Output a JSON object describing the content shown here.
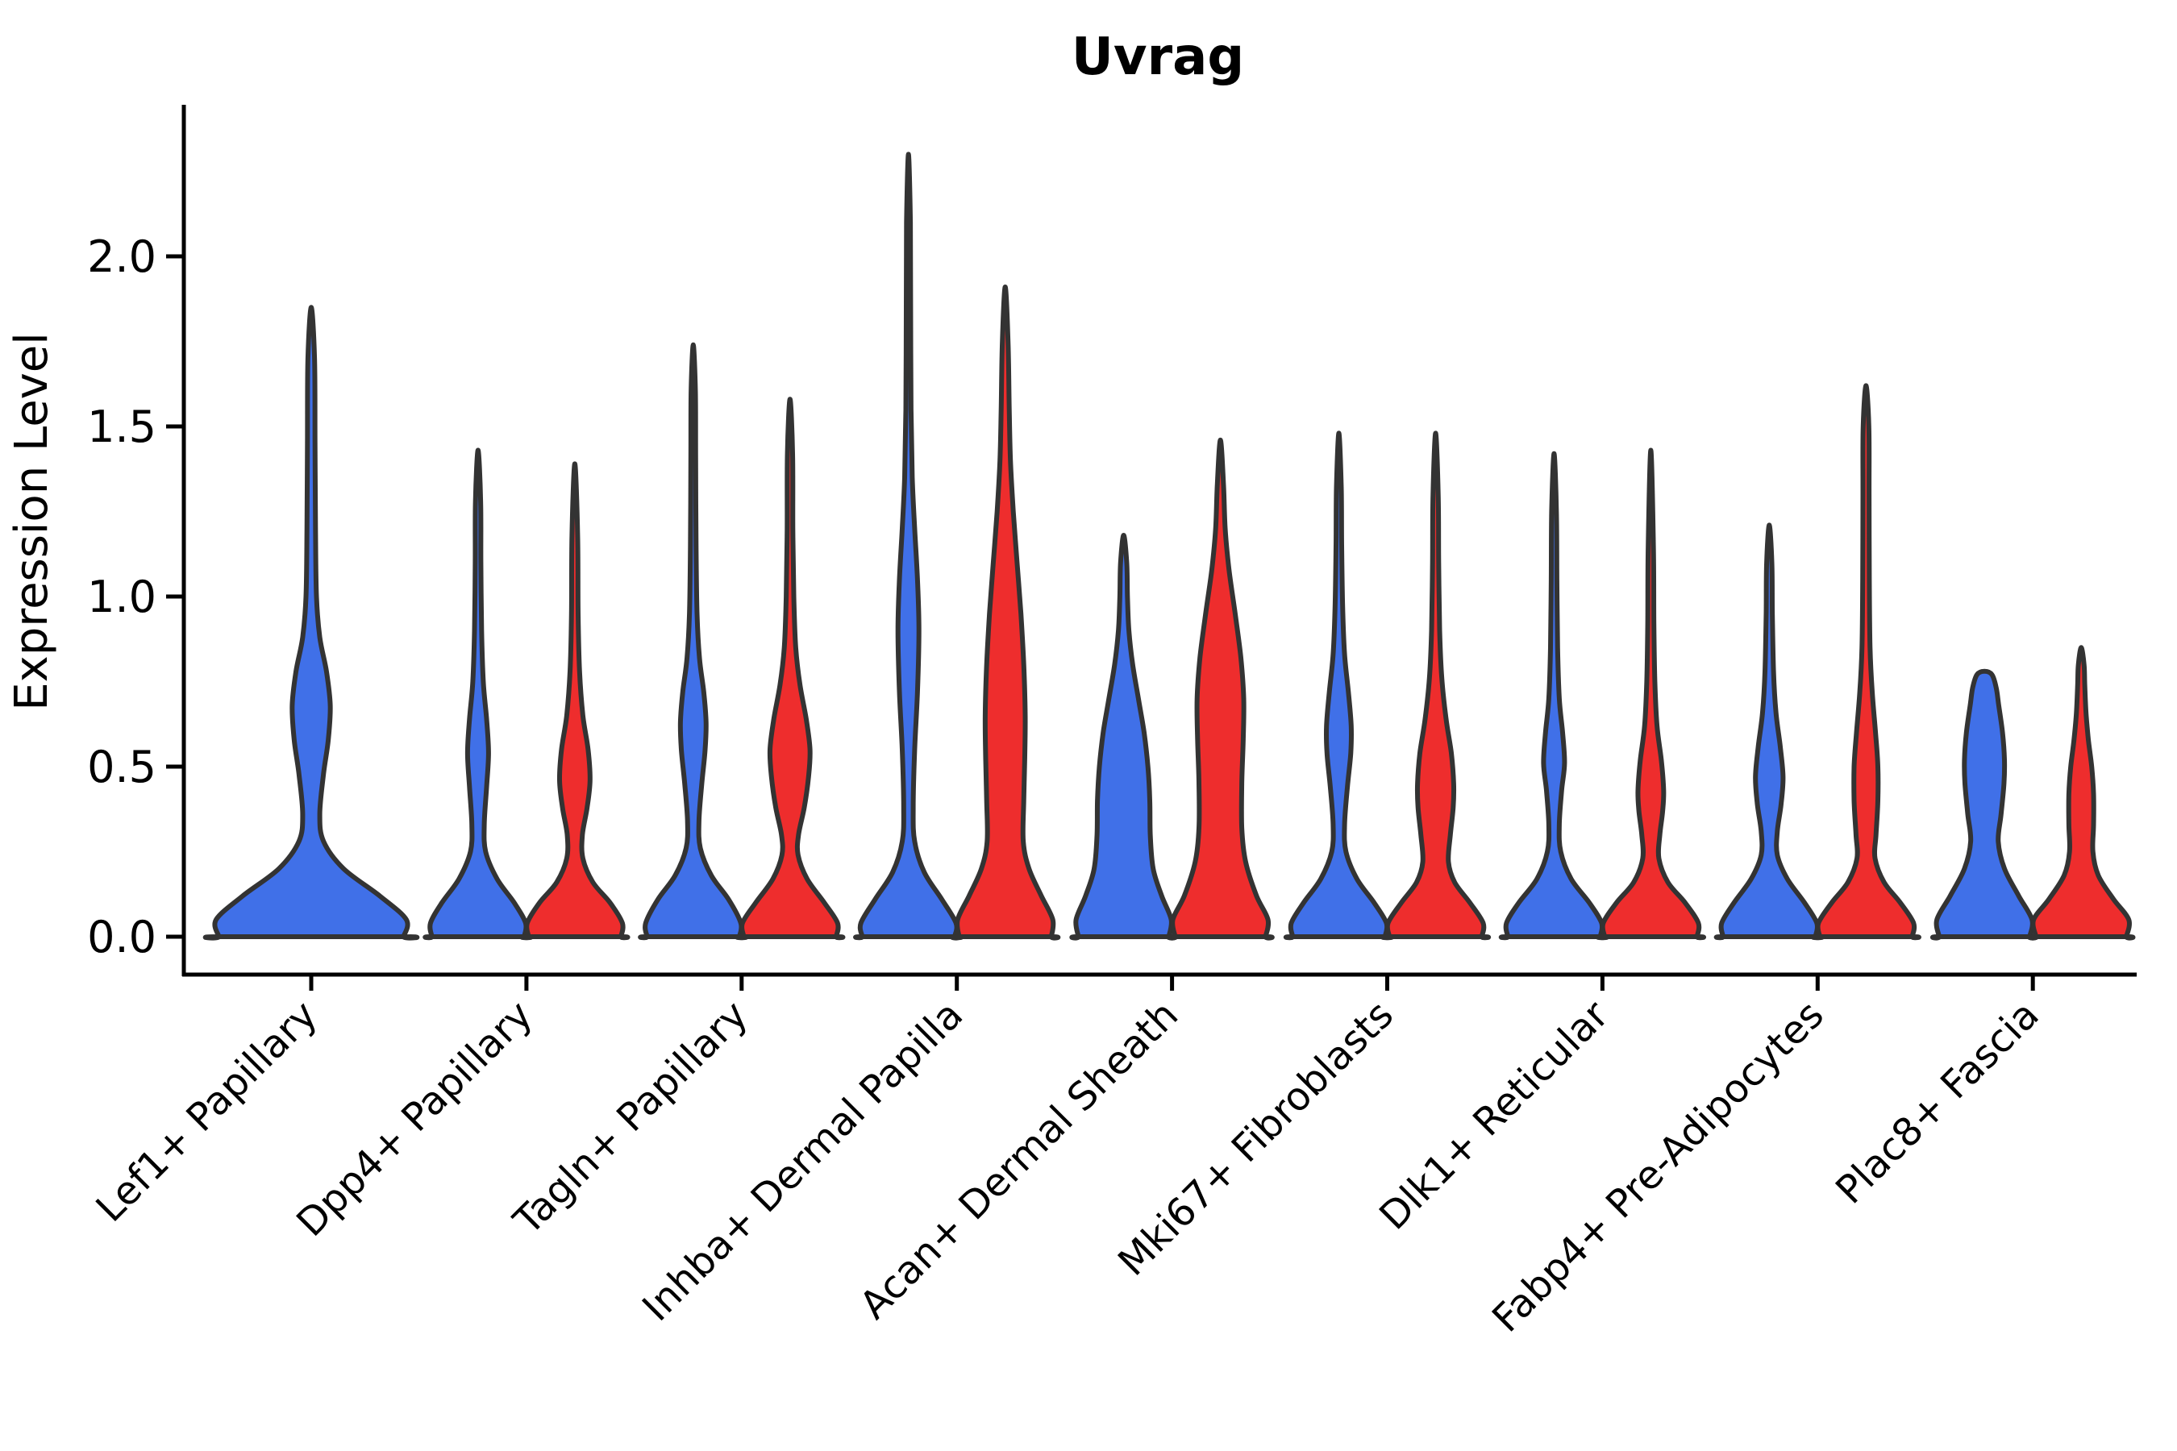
{
  "title": "Uvrag",
  "y_axis_label": "Expression Level",
  "y_tick_labels": [
    "0.0",
    "0.5",
    "1.0",
    "1.5",
    "2.0"
  ],
  "colors": {
    "blue_fill": "#4070E8",
    "red_fill": "#EE2D2D",
    "violin_outline": "#333333",
    "axis": "#000000",
    "background": "#FFFFFF"
  },
  "chart_data": {
    "type": "violin",
    "title": "Uvrag",
    "ylabel": "Expression Level",
    "xlabel": "",
    "ylim": [
      0,
      2.4
    ],
    "yticks": [
      0.0,
      0.5,
      1.0,
      1.5,
      2.0
    ],
    "grid": false,
    "legend_position": "none",
    "groups": [
      {
        "name": "blue",
        "color": "#4070E8"
      },
      {
        "name": "red",
        "color": "#EE2D2D"
      }
    ],
    "categories": [
      "Lef1+ Papillary",
      "Dpp4+ Papillary",
      "Tagln+ Papillary",
      "Inhba+ Dermal Papilla",
      "Acan+ Dermal Sheath",
      "Mki67+ Fibroblasts",
      "Dlk1+ Reticular",
      "Fabp4+ Pre-Adipocytes",
      "Plac8+ Fascia"
    ],
    "profile_format": "[expression_level, half_width_fraction] pairs from base (0) to distribution tip",
    "violins": [
      {
        "category": "Lef1+ Papillary",
        "blue": {
          "max": 1.85,
          "profile": [
            [
              0,
              0.97
            ],
            [
              0.05,
              1.0
            ],
            [
              0.12,
              0.72
            ],
            [
              0.2,
              0.34
            ],
            [
              0.28,
              0.13
            ],
            [
              0.36,
              0.09
            ],
            [
              0.48,
              0.13
            ],
            [
              0.58,
              0.18
            ],
            [
              0.68,
              0.2
            ],
            [
              0.78,
              0.16
            ],
            [
              0.88,
              0.09
            ],
            [
              1.0,
              0.055
            ],
            [
              1.2,
              0.045
            ],
            [
              1.45,
              0.04
            ],
            [
              1.7,
              0.035
            ],
            [
              1.85,
              0
            ]
          ]
        },
        "red": null
      },
      {
        "category": "Dpp4+ Papillary",
        "blue": {
          "max": 1.43,
          "profile": [
            [
              0,
              0.97
            ],
            [
              0.04,
              1.0
            ],
            [
              0.1,
              0.76
            ],
            [
              0.17,
              0.4
            ],
            [
              0.25,
              0.16
            ],
            [
              0.33,
              0.13
            ],
            [
              0.44,
              0.18
            ],
            [
              0.54,
              0.22
            ],
            [
              0.64,
              0.18
            ],
            [
              0.75,
              0.11
            ],
            [
              0.9,
              0.075
            ],
            [
              1.1,
              0.06
            ],
            [
              1.28,
              0.055
            ],
            [
              1.43,
              0
            ]
          ]
        },
        "red": {
          "max": 1.39,
          "profile": [
            [
              0,
              0.97
            ],
            [
              0.04,
              1.0
            ],
            [
              0.1,
              0.74
            ],
            [
              0.16,
              0.38
            ],
            [
              0.23,
              0.17
            ],
            [
              0.3,
              0.16
            ],
            [
              0.38,
              0.26
            ],
            [
              0.46,
              0.32
            ],
            [
              0.55,
              0.28
            ],
            [
              0.65,
              0.17
            ],
            [
              0.78,
              0.1
            ],
            [
              0.95,
              0.07
            ],
            [
              1.18,
              0.06
            ],
            [
              1.39,
              0
            ]
          ]
        }
      },
      {
        "category": "Tagln+ Papillary",
        "blue": {
          "max": 1.74,
          "profile": [
            [
              0,
              0.97
            ],
            [
              0.04,
              1.0
            ],
            [
              0.11,
              0.74
            ],
            [
              0.18,
              0.38
            ],
            [
              0.26,
              0.15
            ],
            [
              0.34,
              0.12
            ],
            [
              0.45,
              0.18
            ],
            [
              0.55,
              0.25
            ],
            [
              0.63,
              0.27
            ],
            [
              0.72,
              0.22
            ],
            [
              0.82,
              0.13
            ],
            [
              0.95,
              0.08
            ],
            [
              1.15,
              0.06
            ],
            [
              1.4,
              0.05
            ],
            [
              1.6,
              0.045
            ],
            [
              1.74,
              0
            ]
          ]
        },
        "red": {
          "max": 1.58,
          "profile": [
            [
              0,
              0.97
            ],
            [
              0.04,
              1.0
            ],
            [
              0.1,
              0.72
            ],
            [
              0.17,
              0.36
            ],
            [
              0.24,
              0.17
            ],
            [
              0.3,
              0.18
            ],
            [
              0.38,
              0.3
            ],
            [
              0.47,
              0.39
            ],
            [
              0.55,
              0.42
            ],
            [
              0.64,
              0.34
            ],
            [
              0.74,
              0.21
            ],
            [
              0.85,
              0.12
            ],
            [
              1.0,
              0.08
            ],
            [
              1.2,
              0.06
            ],
            [
              1.42,
              0.055
            ],
            [
              1.58,
              0
            ]
          ]
        }
      },
      {
        "category": "Inhba+ Dermal Papilla",
        "blue": {
          "max": 2.3,
          "profile": [
            [
              0,
              0.97
            ],
            [
              0.04,
              1.0
            ],
            [
              0.11,
              0.7
            ],
            [
              0.19,
              0.33
            ],
            [
              0.28,
              0.13
            ],
            [
              0.38,
              0.1
            ],
            [
              0.55,
              0.13
            ],
            [
              0.72,
              0.19
            ],
            [
              0.9,
              0.22
            ],
            [
              1.05,
              0.19
            ],
            [
              1.2,
              0.13
            ],
            [
              1.35,
              0.08
            ],
            [
              1.55,
              0.055
            ],
            [
              1.85,
              0.045
            ],
            [
              2.1,
              0.04
            ],
            [
              2.3,
              0
            ]
          ]
        },
        "red": {
          "max": 1.91,
          "profile": [
            [
              0,
              0.97
            ],
            [
              0.05,
              1.0
            ],
            [
              0.12,
              0.76
            ],
            [
              0.2,
              0.5
            ],
            [
              0.28,
              0.38
            ],
            [
              0.4,
              0.39
            ],
            [
              0.52,
              0.41
            ],
            [
              0.65,
              0.42
            ],
            [
              0.8,
              0.39
            ],
            [
              0.95,
              0.33
            ],
            [
              1.1,
              0.25
            ],
            [
              1.25,
              0.17
            ],
            [
              1.4,
              0.11
            ],
            [
              1.55,
              0.085
            ],
            [
              1.75,
              0.06
            ],
            [
              1.91,
              0
            ]
          ]
        }
      },
      {
        "category": "Acan+ Dermal Sheath",
        "blue": {
          "max": 1.18,
          "profile": [
            [
              0,
              0.95
            ],
            [
              0.05,
              1.0
            ],
            [
              0.12,
              0.8
            ],
            [
              0.2,
              0.62
            ],
            [
              0.3,
              0.56
            ],
            [
              0.4,
              0.55
            ],
            [
              0.5,
              0.51
            ],
            [
              0.6,
              0.43
            ],
            [
              0.7,
              0.31
            ],
            [
              0.8,
              0.19
            ],
            [
              0.9,
              0.11
            ],
            [
              1.0,
              0.08
            ],
            [
              1.1,
              0.065
            ],
            [
              1.18,
              0
            ]
          ]
        },
        "red": {
          "max": 1.46,
          "profile": [
            [
              0,
              0.95
            ],
            [
              0.05,
              1.0
            ],
            [
              0.12,
              0.76
            ],
            [
              0.22,
              0.53
            ],
            [
              0.32,
              0.45
            ],
            [
              0.45,
              0.45
            ],
            [
              0.58,
              0.48
            ],
            [
              0.7,
              0.49
            ],
            [
              0.82,
              0.43
            ],
            [
              0.95,
              0.31
            ],
            [
              1.08,
              0.18
            ],
            [
              1.2,
              0.1
            ],
            [
              1.33,
              0.065
            ],
            [
              1.46,
              0
            ]
          ]
        }
      },
      {
        "category": "Mki67+ Fibroblasts",
        "blue": {
          "max": 1.48,
          "profile": [
            [
              0,
              0.97
            ],
            [
              0.04,
              1.0
            ],
            [
              0.1,
              0.74
            ],
            [
              0.17,
              0.38
            ],
            [
              0.25,
              0.15
            ],
            [
              0.33,
              0.12
            ],
            [
              0.44,
              0.18
            ],
            [
              0.54,
              0.25
            ],
            [
              0.62,
              0.26
            ],
            [
              0.72,
              0.2
            ],
            [
              0.83,
              0.12
            ],
            [
              0.97,
              0.08
            ],
            [
              1.15,
              0.06
            ],
            [
              1.32,
              0.05
            ],
            [
              1.48,
              0
            ]
          ]
        },
        "red": {
          "max": 1.48,
          "profile": [
            [
              0,
              0.97
            ],
            [
              0.04,
              1.0
            ],
            [
              0.1,
              0.72
            ],
            [
              0.16,
              0.4
            ],
            [
              0.22,
              0.27
            ],
            [
              0.3,
              0.31
            ],
            [
              0.38,
              0.37
            ],
            [
              0.45,
              0.38
            ],
            [
              0.54,
              0.33
            ],
            [
              0.64,
              0.22
            ],
            [
              0.76,
              0.13
            ],
            [
              0.9,
              0.085
            ],
            [
              1.1,
              0.065
            ],
            [
              1.3,
              0.055
            ],
            [
              1.48,
              0
            ]
          ]
        }
      },
      {
        "category": "Dlk1+ Reticular",
        "blue": {
          "max": 1.42,
          "profile": [
            [
              0,
              0.97
            ],
            [
              0.04,
              1.0
            ],
            [
              0.1,
              0.74
            ],
            [
              0.17,
              0.36
            ],
            [
              0.25,
              0.14
            ],
            [
              0.33,
              0.11
            ],
            [
              0.43,
              0.16
            ],
            [
              0.51,
              0.22
            ],
            [
              0.6,
              0.18
            ],
            [
              0.7,
              0.11
            ],
            [
              0.85,
              0.075
            ],
            [
              1.05,
              0.06
            ],
            [
              1.25,
              0.05
            ],
            [
              1.42,
              0
            ]
          ]
        },
        "red": {
          "max": 1.43,
          "profile": [
            [
              0,
              0.97
            ],
            [
              0.04,
              1.0
            ],
            [
              0.1,
              0.72
            ],
            [
              0.16,
              0.36
            ],
            [
              0.23,
              0.17
            ],
            [
              0.3,
              0.19
            ],
            [
              0.37,
              0.25
            ],
            [
              0.43,
              0.27
            ],
            [
              0.52,
              0.22
            ],
            [
              0.62,
              0.13
            ],
            [
              0.75,
              0.085
            ],
            [
              0.92,
              0.065
            ],
            [
              1.15,
              0.055
            ],
            [
              1.43,
              0
            ]
          ]
        }
      },
      {
        "category": "Fabp4+ Pre-Adipocytes",
        "blue": {
          "max": 1.21,
          "profile": [
            [
              0,
              0.97
            ],
            [
              0.04,
              1.0
            ],
            [
              0.1,
              0.74
            ],
            [
              0.17,
              0.38
            ],
            [
              0.24,
              0.17
            ],
            [
              0.31,
              0.17
            ],
            [
              0.39,
              0.25
            ],
            [
              0.47,
              0.29
            ],
            [
              0.56,
              0.23
            ],
            [
              0.66,
              0.14
            ],
            [
              0.78,
              0.09
            ],
            [
              0.95,
              0.065
            ],
            [
              1.1,
              0.055
            ],
            [
              1.21,
              0
            ]
          ]
        },
        "red": {
          "max": 1.62,
          "profile": [
            [
              0,
              0.97
            ],
            [
              0.04,
              1.0
            ],
            [
              0.1,
              0.72
            ],
            [
              0.16,
              0.38
            ],
            [
              0.23,
              0.19
            ],
            [
              0.3,
              0.21
            ],
            [
              0.4,
              0.25
            ],
            [
              0.5,
              0.25
            ],
            [
              0.6,
              0.2
            ],
            [
              0.72,
              0.13
            ],
            [
              0.85,
              0.085
            ],
            [
              1.05,
              0.07
            ],
            [
              1.3,
              0.065
            ],
            [
              1.5,
              0.06
            ],
            [
              1.62,
              0
            ]
          ]
        }
      },
      {
        "category": "Plac8+ Fascia",
        "blue": {
          "max": 0.78,
          "profile": [
            [
              0,
              0.95
            ],
            [
              0.05,
              1.0
            ],
            [
              0.12,
              0.72
            ],
            [
              0.2,
              0.42
            ],
            [
              0.28,
              0.29
            ],
            [
              0.36,
              0.35
            ],
            [
              0.45,
              0.41
            ],
            [
              0.52,
              0.42
            ],
            [
              0.6,
              0.38
            ],
            [
              0.68,
              0.3
            ],
            [
              0.73,
              0.25
            ],
            [
              0.77,
              0.16
            ],
            [
              0.78,
              0
            ]
          ]
        },
        "red": {
          "max": 0.85,
          "profile": [
            [
              0,
              0.95
            ],
            [
              0.05,
              1.0
            ],
            [
              0.11,
              0.68
            ],
            [
              0.18,
              0.36
            ],
            [
              0.25,
              0.245
            ],
            [
              0.33,
              0.26
            ],
            [
              0.42,
              0.26
            ],
            [
              0.5,
              0.22
            ],
            [
              0.58,
              0.15
            ],
            [
              0.66,
              0.1
            ],
            [
              0.74,
              0.075
            ],
            [
              0.8,
              0.06
            ],
            [
              0.85,
              0
            ]
          ]
        }
      }
    ]
  }
}
